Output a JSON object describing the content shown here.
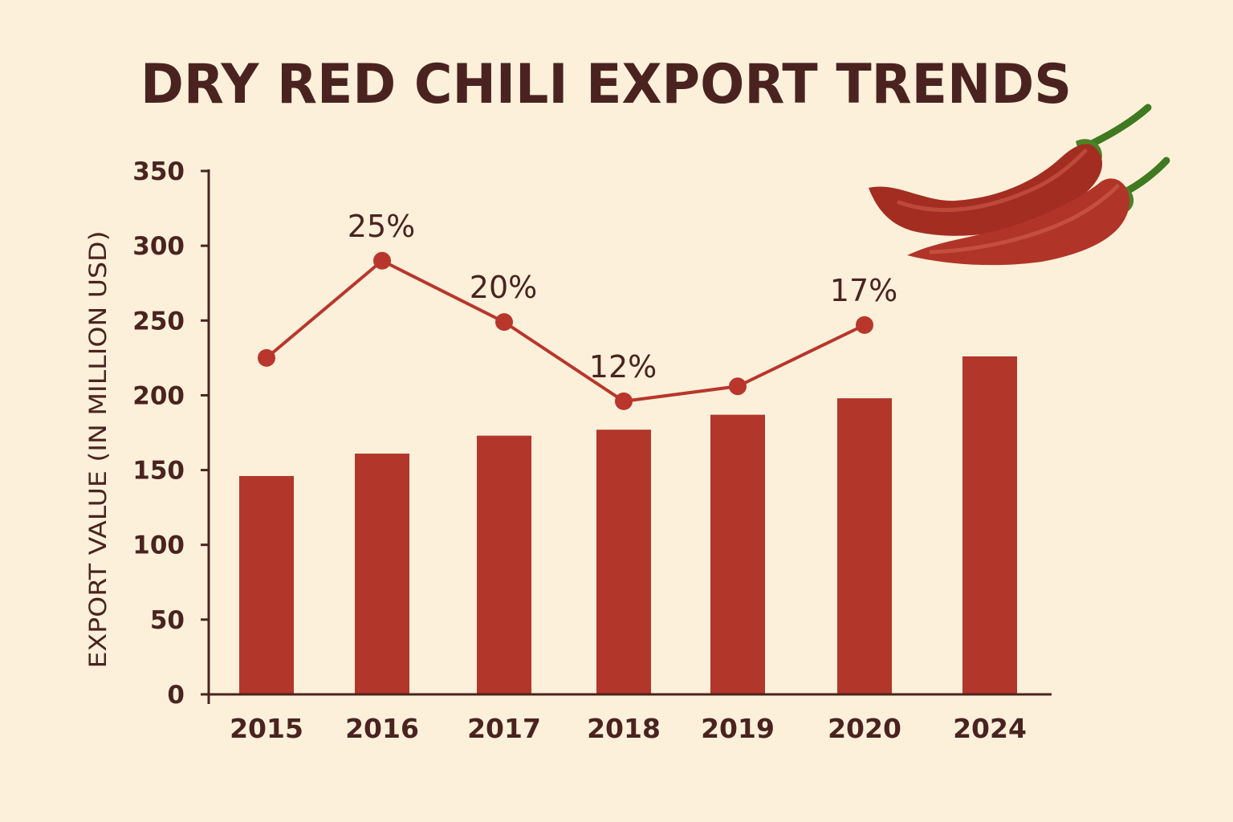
{
  "chart_data": {
    "type": "bar",
    "title": "DRY RED CHILI EXPORT TRENDS",
    "xlabel": "",
    "ylabel": "EXPORT VALUE (IN MILLION USD)",
    "ylim": [
      0,
      350
    ],
    "yticks": [
      0,
      50,
      100,
      150,
      200,
      250,
      300,
      350
    ],
    "categories": [
      "2015",
      "2016",
      "2017",
      "2018",
      "2019",
      "2020",
      "2024"
    ],
    "grid": false,
    "series": [
      {
        "type": "bar",
        "values": [
          146,
          161,
          173,
          177,
          187,
          198,
          226
        ]
      },
      {
        "type": "line",
        "values": [
          225,
          290,
          249,
          196,
          206,
          247,
          null
        ],
        "labels": [
          "",
          "25%",
          "20%",
          "12%",
          "",
          "17%",
          ""
        ]
      }
    ]
  },
  "colors": {
    "background": "#fdf0da",
    "bar": "#b3362a",
    "line": "#b9362c",
    "text": "#4a2320",
    "axis": "#4a2320"
  },
  "decoration": {
    "icon": "red-chili-peppers-illustration"
  }
}
